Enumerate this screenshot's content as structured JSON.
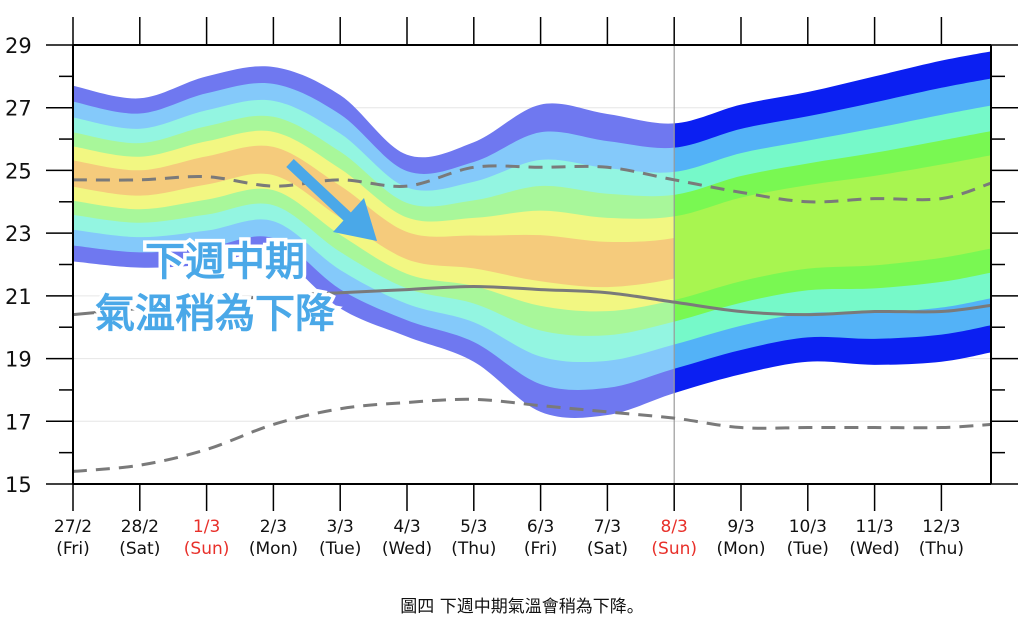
{
  "chart_data": {
    "type": "area",
    "title": "",
    "xlabel": "",
    "ylabel": "",
    "ylim": [
      15,
      29
    ],
    "yticks": [
      15,
      17,
      19,
      21,
      23,
      25,
      27,
      29
    ],
    "grid": true,
    "categories": [
      {
        "date": "27/2",
        "day": "(Fri)",
        "holiday": false
      },
      {
        "date": "28/2",
        "day": "(Sat)",
        "holiday": false
      },
      {
        "date": "1/3",
        "day": "(Sun)",
        "holiday": true
      },
      {
        "date": "2/3",
        "day": "(Mon)",
        "holiday": false
      },
      {
        "date": "3/3",
        "day": "(Tue)",
        "holiday": false
      },
      {
        "date": "4/3",
        "day": "(Wed)",
        "holiday": false
      },
      {
        "date": "5/3",
        "day": "(Thu)",
        "holiday": false
      },
      {
        "date": "6/3",
        "day": "(Fri)",
        "holiday": false
      },
      {
        "date": "7/3",
        "day": "(Sat)",
        "holiday": false
      },
      {
        "date": "8/3",
        "day": "(Sun)",
        "holiday": true
      },
      {
        "date": "9/3",
        "day": "(Mon)",
        "holiday": false
      },
      {
        "date": "10/3",
        "day": "(Tue)",
        "holiday": false
      },
      {
        "date": "11/3",
        "day": "(Wed)",
        "holiday": false
      },
      {
        "date": "12/3",
        "day": "(Thu)",
        "holiday": false
      }
    ],
    "ensemble": {
      "x": [
        0,
        1,
        2,
        3,
        4,
        5,
        6,
        7,
        8,
        9,
        10,
        11,
        12,
        13,
        13.75
      ],
      "center": [
        24.9,
        24.6,
        25.0,
        25.3,
        24.0,
        22.6,
        22.4,
        22.2,
        22.0,
        22.2,
        22.8,
        23.2,
        23.4,
        23.7,
        24.0
      ],
      "half_range": [
        2.8,
        2.7,
        3.0,
        3.0,
        3.4,
        2.9,
        3.5,
        4.9,
        4.8,
        4.3,
        4.3,
        4.3,
        4.6,
        4.8,
        4.8
      ],
      "level_fractions": [
        1.0,
        0.82,
        0.64,
        0.47,
        0.31,
        0.15
      ]
    },
    "series": [
      {
        "style": "dashed",
        "x": [
          0,
          1,
          2,
          3,
          4,
          5,
          6,
          7,
          8,
          9,
          10,
          11,
          12,
          13,
          13.75
        ],
        "values": [
          24.7,
          24.7,
          24.8,
          24.5,
          24.7,
          24.5,
          25.1,
          25.1,
          25.1,
          24.7,
          24.3,
          24.0,
          24.1,
          24.1,
          24.6
        ]
      },
      {
        "style": "solid",
        "x": [
          0,
          1,
          2,
          3,
          4,
          5,
          6,
          7,
          8,
          9,
          10,
          11,
          12,
          13,
          13.75
        ],
        "values": [
          20.4,
          20.6,
          20.8,
          21.0,
          21.1,
          21.2,
          21.3,
          21.2,
          21.1,
          20.8,
          20.5,
          20.4,
          20.5,
          20.5,
          20.7
        ]
      },
      {
        "style": "dashed",
        "x": [
          0,
          1,
          2,
          3,
          4,
          5,
          6,
          7,
          8,
          9,
          10,
          11,
          12,
          13,
          13.75
        ],
        "values": [
          15.4,
          15.6,
          16.1,
          16.9,
          17.4,
          17.6,
          17.7,
          17.5,
          17.3,
          17.1,
          16.8,
          16.8,
          16.8,
          16.8,
          16.9
        ]
      }
    ],
    "split_day": 9,
    "colors_before": [
      "#6f78f0",
      "#84c9fa",
      "#93f5e1",
      "#a8f79a",
      "#f2f782",
      "#f5cb7c"
    ],
    "colors_after": [
      "#0b1ff2",
      "#53b2f7",
      "#76f9c9",
      "#79f852",
      "#a8f550",
      "#a8f550"
    ],
    "holiday_color": "#e8302a",
    "annotation": {
      "line1": "下週中期",
      "line2": "氣溫稍為下降",
      "color": "#4aa8e8"
    }
  },
  "caption": "圖四 下週中期氣溫會稍為下降。"
}
